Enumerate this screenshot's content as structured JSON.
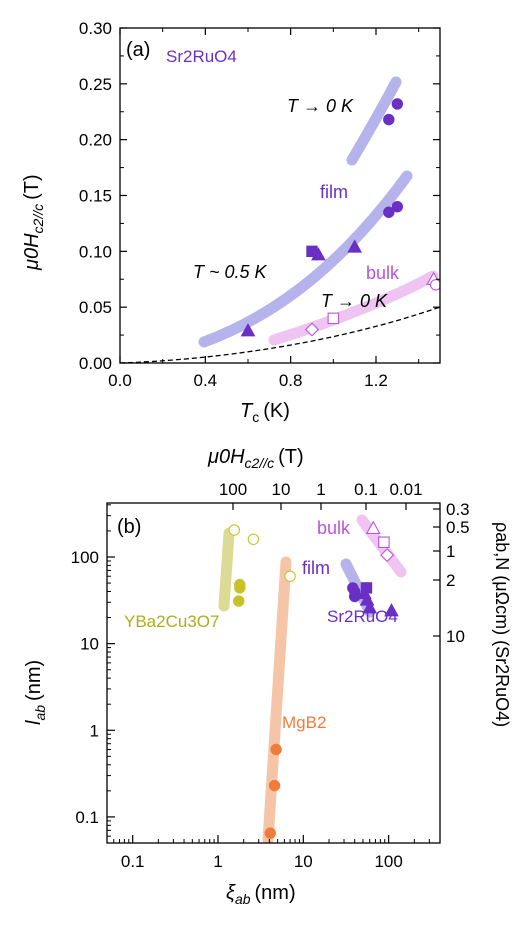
{
  "chart_data": [
    {
      "type": "scatter",
      "panel_label": "(a)",
      "material_label": "Sr2RuO4",
      "xlabel_main": "T",
      "xlabel_sub": "c",
      "xlabel_unit": "(K)",
      "ylabel_main": "μ0H",
      "ylabel_sub": "c2//c",
      "ylabel_unit": "(T)",
      "xlim": [
        0.0,
        1.5
      ],
      "ylim": [
        0.0,
        0.3
      ],
      "xticks": [
        0.0,
        0.4,
        0.8,
        1.2
      ],
      "xtick_labels": [
        "0.0",
        "0.4",
        "0.8",
        "1.2"
      ],
      "yticks": [
        0.0,
        0.05,
        0.1,
        0.15,
        0.2,
        0.25,
        0.3
      ],
      "ytick_labels": [
        "0.00",
        "0.05",
        "0.10",
        "0.15",
        "0.20",
        "0.25",
        "0.30"
      ],
      "annotations": [
        "T → 0 K",
        "film",
        "T ~ 0.5 K",
        "bulk",
        "T → 0 K"
      ],
      "colors": {
        "film": "#6a2fc4",
        "film_band": "#b5b2ec",
        "bulk": "#b855d9",
        "bulk_band": "#efc3f2"
      },
      "series": [
        {
          "label": "film",
          "marker": "circle",
          "filled": true,
          "x": [
            1.26,
            1.3
          ],
          "y": [
            0.218,
            0.232
          ]
        },
        {
          "label": "film",
          "marker": "circle",
          "filled": true,
          "x": [
            1.26,
            1.3
          ],
          "y": [
            0.135,
            0.14
          ]
        },
        {
          "label": "film",
          "marker": "triangle",
          "filled": true,
          "x": [
            0.6,
            0.93,
            1.1
          ],
          "y": [
            0.029,
            0.097,
            0.104
          ]
        },
        {
          "label": "film",
          "marker": "square",
          "filled": true,
          "x": [
            0.9
          ],
          "y": [
            0.1
          ]
        },
        {
          "label": "bulk",
          "marker": "diamond",
          "filled": false,
          "x": [
            0.9
          ],
          "y": [
            0.03
          ]
        },
        {
          "label": "bulk",
          "marker": "square",
          "filled": false,
          "x": [
            1.0
          ],
          "y": [
            0.04
          ]
        },
        {
          "label": "bulk",
          "marker": "triangle",
          "filled": false,
          "x": [
            1.47
          ],
          "y": [
            0.075
          ]
        },
        {
          "label": "bulk",
          "marker": "circle",
          "filled": false,
          "x": [
            1.48
          ],
          "y": [
            0.07
          ]
        }
      ]
    },
    {
      "type": "scatter",
      "panel_label": "(b)",
      "xscale": "log",
      "yscale": "log",
      "xlabel_main": "ξ",
      "xlabel_sub": "ab",
      "xlabel_unit": "(nm)",
      "ylabel_main": "l",
      "ylabel_sub": "ab",
      "ylabel_unit": "(nm)",
      "top_label_main": "μ0H",
      "top_label_sub": "c2//c",
      "top_label_unit": "(T)",
      "right_label": "ρab,N (μΩcm) (Sr2RuO4)",
      "xlim": [
        0.05,
        400
      ],
      "ylim": [
        0.05,
        420
      ],
      "xticks": [
        0.1,
        1,
        10,
        100
      ],
      "xtick_labels": [
        "0.1",
        "1",
        "10",
        "100"
      ],
      "yticks": [
        0.1,
        1,
        10,
        100
      ],
      "ytick_labels": [
        "0.1",
        "1",
        "10",
        "100"
      ],
      "top_ticks": [
        "100",
        "10",
        "1",
        "0.1",
        "0.01"
      ],
      "right_ticks": [
        "0.3",
        "0.5",
        "1",
        "2",
        "10"
      ],
      "annotations": [
        "bulk",
        "film",
        "Sr2RuO4",
        "YBa2Cu3O7",
        "MgB2"
      ],
      "colors": {
        "YBa2Cu3O7": "#c7c22a",
        "MgB2": "#f07c3a",
        "film": "#6a2fc4",
        "bulk": "#b855d9"
      },
      "series": [
        {
          "label": "YBa2Cu3O7",
          "marker": "circle",
          "filled": true,
          "x": [
            1.8,
            1.8,
            1.75
          ],
          "y": [
            48,
            44,
            31
          ]
        },
        {
          "label": "YBa2Cu3O7",
          "marker": "circle",
          "filled": false,
          "x": [
            1.55,
            2.6,
            7.0
          ],
          "y": [
            205,
            160,
            60
          ]
        },
        {
          "label": "MgB2",
          "marker": "circle",
          "filled": true,
          "x": [
            4.8,
            4.6,
            4.1
          ],
          "y": [
            0.6,
            0.23,
            0.065
          ]
        },
        {
          "label": "film",
          "marker": "circle",
          "filled": true,
          "x": [
            38,
            40,
            40
          ],
          "y": [
            44,
            40,
            35
          ]
        },
        {
          "label": "film",
          "marker": "square",
          "filled": true,
          "x": [
            55
          ],
          "y": [
            44
          ]
        },
        {
          "label": "film",
          "marker": "triangle",
          "filled": true,
          "x": [
            52,
            56,
            60,
            108
          ],
          "y": [
            38,
            32,
            26,
            24
          ]
        },
        {
          "label": "bulk",
          "marker": "triangle",
          "filled": false,
          "x": [
            66
          ],
          "y": [
            215
          ]
        },
        {
          "label": "bulk",
          "marker": "square",
          "filled": false,
          "x": [
            88
          ],
          "y": [
            148
          ]
        },
        {
          "label": "bulk",
          "marker": "diamond",
          "filled": false,
          "x": [
            96
          ],
          "y": [
            105
          ]
        }
      ]
    }
  ]
}
